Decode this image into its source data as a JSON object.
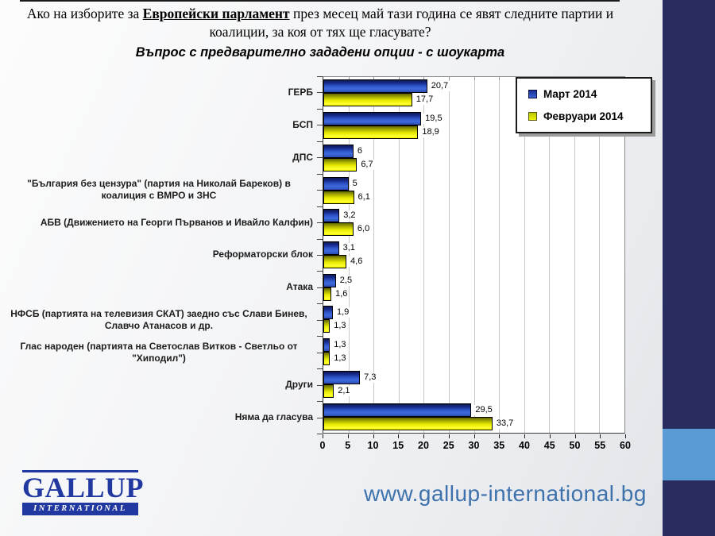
{
  "title": {
    "line1_pre": "Ако на изборите за ",
    "line1_emph": "Европейски парламент",
    "line1_post": " през месец май тази година се явят следните партии и",
    "line2": "коалиции, за коя от тях ще гласувате?",
    "line3": "Въпрос с предварително зададени опции - с шоукарта"
  },
  "legend": {
    "position": "top-right",
    "items": [
      {
        "label": "Март 2014",
        "color": "#2b50c8"
      },
      {
        "label": "Февруари 2014",
        "color": "#d8e000"
      }
    ]
  },
  "chart_data": {
    "type": "bar",
    "orientation": "horizontal",
    "title": "",
    "xlabel": "",
    "ylabel": "",
    "xlim": [
      0,
      60
    ],
    "xticks": [
      0,
      5,
      10,
      15,
      20,
      25,
      30,
      35,
      40,
      45,
      50,
      55,
      60
    ],
    "grid": "vertical",
    "decimal_separator": ",",
    "categories": [
      "ГЕРБ",
      "БСП",
      "ДПС",
      "\"България без цензура\" (партия на Николай Бареков) в коалиция с ВМРО и ЗНС",
      "АБВ (Движението на Георги Първанов и Ивайло Калфин)",
      "Реформаторски блок",
      "Атака",
      "НФСБ (партията на телевизия СКАТ) заедно със Слави Бинев, Славчо Атанасов и др.",
      "Глас народен (партията на Светослав Витков - Светльо от \"Хиподил\")",
      "Други",
      "Няма да гласува"
    ],
    "series": [
      {
        "name": "Март 2014",
        "color": "#2b50c8",
        "values": [
          20.7,
          19.5,
          6,
          5,
          3.2,
          3.1,
          2.5,
          1.9,
          1.3,
          7.3,
          29.5
        ],
        "value_labels": [
          "20,7",
          "19,5",
          "6",
          "5",
          "3,2",
          "3,1",
          "2,5",
          "1,9",
          "1,3",
          "7,3",
          "29,5"
        ]
      },
      {
        "name": "Февруари 2014",
        "color": "#e8e800",
        "values": [
          17.7,
          18.9,
          6.7,
          6.1,
          6.0,
          4.6,
          1.6,
          1.3,
          1.3,
          2.1,
          33.7
        ],
        "value_labels": [
          "17,7",
          "18,9",
          "6,7",
          "6,1",
          "6,0",
          "4,6",
          "1,6",
          "1,3",
          "1,3",
          "2,1",
          "33,7"
        ]
      }
    ]
  },
  "footer": {
    "url": "www.gallup-international.bg"
  },
  "logo": {
    "name": "GALLUP",
    "subtitle": "INTERNATIONAL"
  },
  "colors": {
    "band": "#292c5e",
    "accent": "#5b9bd5",
    "url_text": "#3e72ac",
    "logo_blue": "#2138a0",
    "gridline": "#c9c9c9"
  }
}
